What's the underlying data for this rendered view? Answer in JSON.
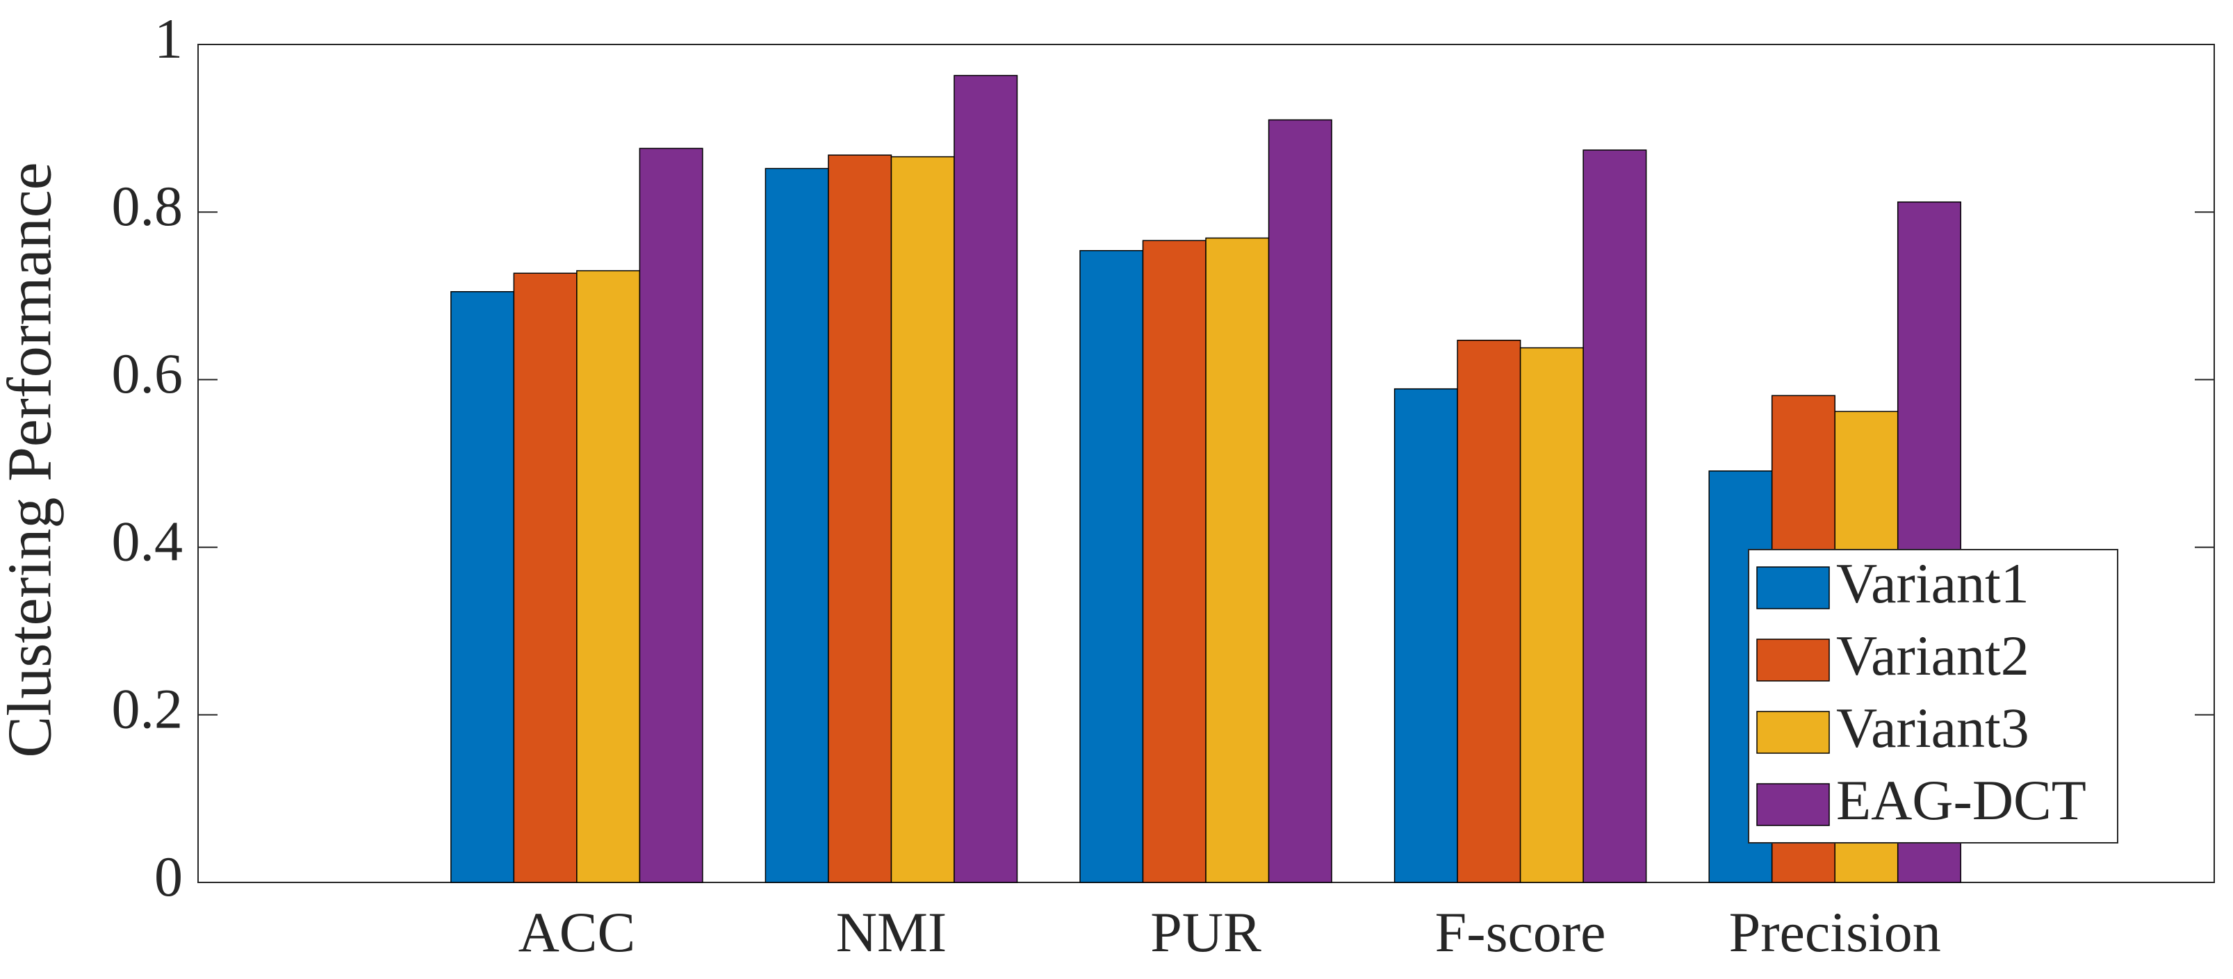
{
  "chart_data": {
    "type": "bar",
    "ylabel": "Clustering Performance",
    "categories": [
      "ACC",
      "NMI",
      "PUR",
      "F-score",
      "Precision"
    ],
    "series": [
      {
        "name": "Variant1",
        "color": "#0072BD",
        "values": [
          0.705,
          0.852,
          0.754,
          0.589,
          0.491
        ]
      },
      {
        "name": "Variant2",
        "color": "#D95319",
        "values": [
          0.727,
          0.868,
          0.766,
          0.647,
          0.581
        ]
      },
      {
        "name": "Variant3",
        "color": "#EDB120",
        "values": [
          0.73,
          0.866,
          0.769,
          0.638,
          0.562
        ]
      },
      {
        "name": "EAG-DCT",
        "color": "#7E2F8E",
        "values": [
          0.876,
          0.963,
          0.91,
          0.874,
          0.812
        ]
      }
    ],
    "ylim": [
      0,
      1
    ],
    "yticks": [
      0,
      0.2,
      0.4,
      0.6,
      0.8,
      1
    ],
    "legend": "lower-right"
  }
}
